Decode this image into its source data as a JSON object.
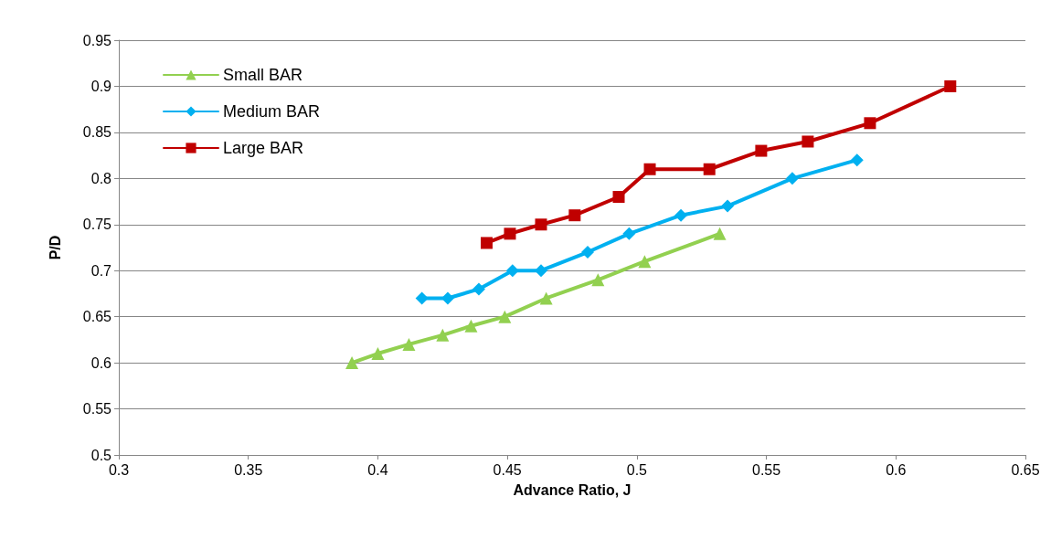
{
  "chart_data": {
    "type": "line",
    "xlabel": "Advance Ratio, J",
    "ylabel": "P/D",
    "xlim": [
      0.3,
      0.65
    ],
    "xticks": [
      0.3,
      0.35,
      0.4,
      0.45,
      0.5,
      0.55,
      0.6,
      0.65
    ],
    "ylim": [
      0.5,
      0.95
    ],
    "yticks": [
      0.5,
      0.55,
      0.6,
      0.65,
      0.7,
      0.75,
      0.8,
      0.85,
      0.9,
      0.95
    ],
    "grid": "y",
    "legend": "top left",
    "series": [
      {
        "name": "Small BAR",
        "color": "#92d050",
        "marker": "triangle",
        "x": [
          0.39,
          0.4,
          0.412,
          0.425,
          0.436,
          0.449,
          0.465,
          0.485,
          0.503,
          0.532
        ],
        "values": [
          0.6,
          0.61,
          0.62,
          0.63,
          0.64,
          0.65,
          0.67,
          0.69,
          0.71,
          0.74
        ]
      },
      {
        "name": "Medium BAR",
        "color": "#00b0f0",
        "marker": "diamond",
        "x": [
          0.417,
          0.427,
          0.439,
          0.452,
          0.463,
          0.481,
          0.497,
          0.517,
          0.535,
          0.56,
          0.585
        ],
        "values": [
          0.67,
          0.67,
          0.68,
          0.7,
          0.7,
          0.72,
          0.74,
          0.76,
          0.77,
          0.8,
          0.82
        ]
      },
      {
        "name": "Large BAR",
        "color": "#c00000",
        "marker": "square",
        "x": [
          0.442,
          0.451,
          0.463,
          0.476,
          0.493,
          0.505,
          0.528,
          0.548,
          0.566,
          0.59,
          0.621
        ],
        "values": [
          0.73,
          0.74,
          0.75,
          0.76,
          0.78,
          0.81,
          0.81,
          0.83,
          0.84,
          0.86,
          0.9
        ]
      }
    ]
  }
}
